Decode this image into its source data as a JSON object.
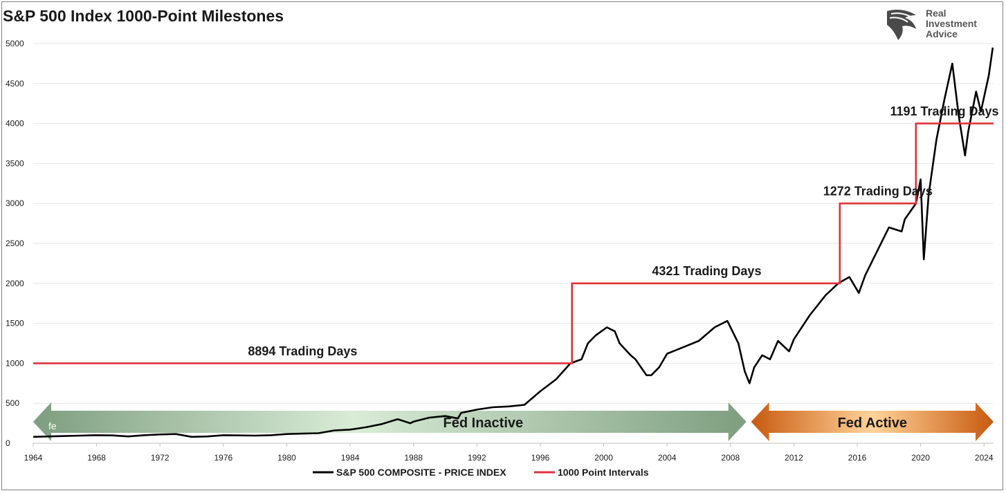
{
  "title": "S&P 500 Index 1000-Point Milestones",
  "logo": {
    "lines": [
      "Real",
      "Investment",
      "Advice"
    ]
  },
  "colors": {
    "price": "#000000",
    "intervals": "#e0303a",
    "fed_inactive": "#8aa98a",
    "fed_active": "#d86a1a",
    "grid": "#e6e6e6"
  },
  "chart_data": {
    "type": "line",
    "title": "S&P 500 Index 1000-Point Milestones",
    "xlim": [
      1964,
      2024.6
    ],
    "ylim": [
      0,
      5000
    ],
    "x_ticks": [
      1964,
      1968,
      1972,
      1976,
      1980,
      1984,
      1988,
      1992,
      1996,
      2000,
      2004,
      2008,
      2012,
      2016,
      2020,
      2024
    ],
    "y_ticks": [
      0,
      500,
      1000,
      1500,
      2000,
      2500,
      3000,
      3500,
      4000,
      4500,
      5000
    ],
    "grid": true,
    "legend_position": "bottom",
    "series": [
      {
        "name": "S&P 500 COMPOSITE - PRICE INDEX",
        "x": [
          1964.0,
          1965.0,
          1966.0,
          1967.0,
          1968.0,
          1969.0,
          1970.0,
          1971.0,
          1972.0,
          1973.0,
          1974.0,
          1975.0,
          1976.0,
          1977.0,
          1978.0,
          1979.0,
          1980.0,
          1981.0,
          1982.0,
          1983.0,
          1984.0,
          1985.0,
          1986.0,
          1987.0,
          1987.8,
          1988.0,
          1989.0,
          1990.0,
          1990.8,
          1991.0,
          1992.0,
          1993.0,
          1994.0,
          1995.0,
          1996.0,
          1997.0,
          1997.9,
          1998.6,
          1999.0,
          1999.5,
          2000.2,
          2000.7,
          2001.0,
          2001.7,
          2002.0,
          2002.7,
          2003.0,
          2003.5,
          2004.0,
          2005.0,
          2006.0,
          2007.0,
          2007.8,
          2008.5,
          2008.9,
          2009.2,
          2009.5,
          2010.0,
          2010.5,
          2011.0,
          2011.7,
          2012.0,
          2013.0,
          2014.0,
          2014.8,
          2015.5,
          2016.1,
          2016.5,
          2017.0,
          2018.0,
          2018.8,
          2019.0,
          2019.7,
          2020.0,
          2020.2,
          2020.5,
          2021.0,
          2021.5,
          2022.0,
          2022.4,
          2022.8,
          2023.0,
          2023.5,
          2023.8,
          2024.3,
          2024.55
        ],
        "values": [
          80,
          85,
          90,
          95,
          100,
          98,
          85,
          100,
          110,
          115,
          80,
          85,
          100,
          98,
          95,
          100,
          115,
          120,
          125,
          160,
          170,
          200,
          240,
          300,
          250,
          270,
          320,
          340,
          310,
          380,
          420,
          450,
          460,
          480,
          650,
          800,
          1000,
          1050,
          1250,
          1350,
          1450,
          1400,
          1250,
          1100,
          1050,
          850,
          850,
          950,
          1120,
          1200,
          1280,
          1450,
          1530,
          1250,
          900,
          750,
          950,
          1100,
          1050,
          1280,
          1150,
          1300,
          1600,
          1850,
          2000,
          2080,
          1880,
          2100,
          2300,
          2700,
          2650,
          2800,
          3000,
          3300,
          2300,
          3100,
          3800,
          4300,
          4750,
          4100,
          3600,
          3900,
          4400,
          4150,
          4600,
          4950
        ]
      },
      {
        "name": "1000 Point Intervals",
        "x": [
          1964.0,
          1998.0,
          1998.0,
          2014.9,
          2014.9,
          2019.7,
          2019.7,
          2024.6
        ],
        "values": [
          1000,
          1000,
          2000,
          2000,
          3000,
          3000,
          4000,
          4000
        ]
      }
    ],
    "annotations": [
      {
        "text": "8894 Trading Days",
        "x": 1981.0,
        "y": 1100
      },
      {
        "text": "4321 Trading Days",
        "x": 2006.5,
        "y": 2100
      },
      {
        "text": "1272 Trading Days",
        "x": 2017.3,
        "y": 3100
      },
      {
        "text": "1191 Trading Days",
        "x": 2021.5,
        "y": 4100
      }
    ],
    "regions": [
      {
        "label": "Fed Inactive",
        "x_start": 1964.0,
        "x_end": 2009.0,
        "color": "#8aa98a"
      },
      {
        "label": "Fed Active",
        "x_start": 2009.3,
        "x_end": 2024.6,
        "color": "#d86a1a"
      }
    ],
    "stray_label": "fe"
  },
  "legend": [
    {
      "label": "S&P 500 COMPOSITE - PRICE INDEX",
      "color": "#000000"
    },
    {
      "label": "1000 Point Intervals",
      "color": "#e0303a"
    }
  ]
}
